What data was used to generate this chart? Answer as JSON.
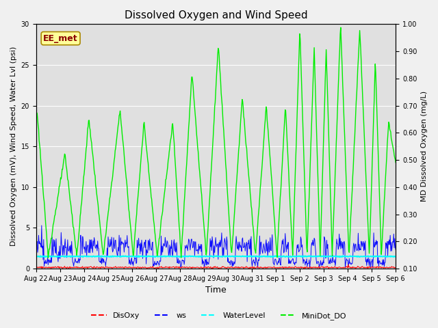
{
  "title": "Dissolved Oxygen and Wind Speed",
  "ylabel_left": "Dissolved Oxygen (mV), Wind Speed, Water Lvl (psi)",
  "ylabel_right": "MD Dissolved Oxygen (mg/L)",
  "xlabel": "Time",
  "ylim_left": [
    0,
    30
  ],
  "ylim_right": [
    0.1,
    1.0
  ],
  "xtick_labels": [
    "Aug 22",
    "Aug 23",
    "Aug 24",
    "Aug 25",
    "Aug 26",
    "Aug 27",
    "Aug 28",
    "Aug 29",
    "Aug 30",
    "Aug 31",
    "Sep 1",
    "Sep 2",
    "Sep 3",
    "Sep 4",
    "Sep 5",
    "Sep 6"
  ],
  "fig_bg_color": "#f0f0f0",
  "plot_bg_color": "#e0e0e0",
  "annotation_box_text": "EE_met",
  "annotation_box_color": "#ffff99",
  "annotation_box_edge_color": "#aa8800",
  "grid_color": "#d0d0d0",
  "ws_color": "blue",
  "water_color": "cyan",
  "minidot_color": "#00ee00",
  "disoxy_color": "red",
  "title_fontsize": 11,
  "axis_fontsize": 8,
  "tick_fontsize": 7
}
